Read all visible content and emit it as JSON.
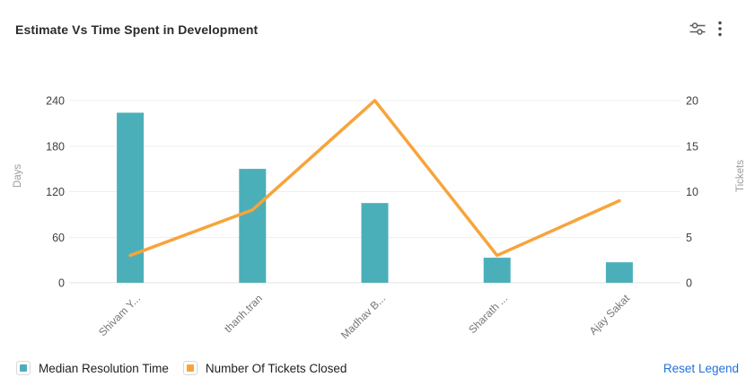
{
  "header": {
    "title": "Estimate Vs Time Spent in Development",
    "icons": {
      "filter": "sliders-icon",
      "menu": "kebab-menu-icon"
    }
  },
  "legend": {
    "reset_label": "Reset Legend",
    "link_color": "#2371db"
  },
  "chart_data": {
    "type": "combo-bar-line",
    "title": "Estimate Vs Time Spent in Development",
    "categories": [
      "Shivam Y...",
      "thanh.tran",
      "Madhav B...",
      "Sharath ...",
      "Ajay Sakat"
    ],
    "series": [
      {
        "name": "Median Resolution Time",
        "type": "bar",
        "axis": "left",
        "color": "#4bafba",
        "values": [
          224,
          150,
          105,
          33,
          27
        ]
      },
      {
        "name": "Number Of Tickets Closed",
        "type": "line",
        "axis": "right",
        "color": "#f7a43b",
        "values": [
          3,
          8,
          20,
          3,
          9
        ]
      }
    ],
    "y_left": {
      "label": "Days",
      "min": 0,
      "max": 240,
      "ticks": [
        0,
        60,
        120,
        180,
        240
      ]
    },
    "y_right": {
      "label": "Tickets",
      "min": 0,
      "max": 20,
      "ticks": [
        0,
        5,
        10,
        15,
        20
      ]
    },
    "grid": true,
    "legend_position": "bottom"
  }
}
